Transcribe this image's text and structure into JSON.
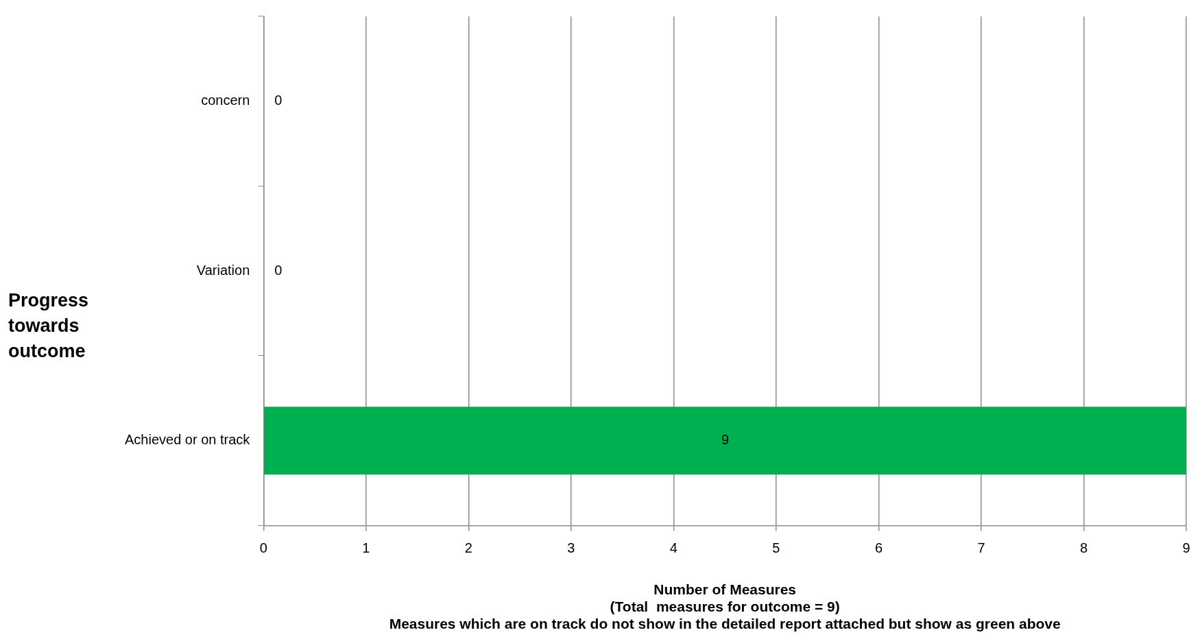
{
  "chart_data": {
    "type": "bar",
    "orientation": "horizontal",
    "ylabel": "Progress towards outcome",
    "xlabel": "Number of Measures\n(Total  measures for outcome = 9)\nMeasures which are on track do not show in the detailed report attached but show as green above",
    "categories": [
      "concern",
      "Variation",
      "Achieved or on track"
    ],
    "values": [
      0,
      0,
      9
    ],
    "color": "#00b050",
    "xlim": [
      0,
      9
    ],
    "xticks": [
      0,
      1,
      2,
      3,
      4,
      5,
      6,
      7,
      8,
      9
    ],
    "grid": "x",
    "data_labels": true,
    "legend": false
  }
}
